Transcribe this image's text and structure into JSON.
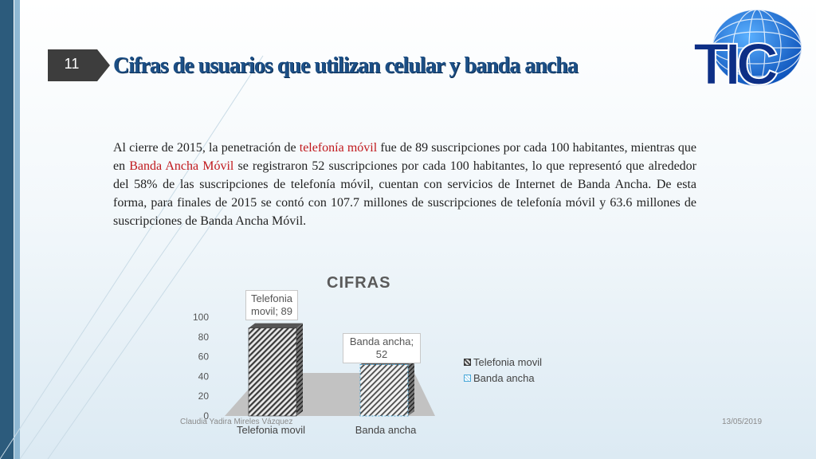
{
  "slide": {
    "number": "11",
    "title": "Cifras de usuarios que utilizan celular y banda ancha",
    "paragraph": {
      "p1": "Al cierre de 2015, la penetración de ",
      "h1": "telefonía móvil",
      "p2": " fue de 89 suscripciones por cada 100 habitantes, mientras que en ",
      "h2": "Banda Ancha Móvil",
      "p3": " se registraron 52 suscripciones por cada 100 habitantes, lo que representó que alrededor del 58% de las suscripciones de telefonía móvil, cuentan con servicios de Internet de Banda Ancha. De esta forma, para finales de 2015 se contó con 107.7 millones de suscripciones de telefonía móvil y 63.6 millones de suscripciones de Banda Ancha Móvil."
    },
    "logo_text": "TIC",
    "footer_author": "Claudia Yadira Mireles Vázquez",
    "footer_date": "13/05/2019",
    "colors": {
      "title": "#1c4f86",
      "highlight": "#c0181c",
      "accent_bar": "#2c5b7c"
    }
  },
  "chart_data": {
    "type": "bar",
    "title": "CIFRAS",
    "categories": [
      "Telefonia movil",
      "Banda ancha"
    ],
    "series": [
      {
        "name": "Telefonia movil",
        "values": [
          89,
          null
        ]
      },
      {
        "name": "Banda ancha",
        "values": [
          null,
          52
        ]
      }
    ],
    "data_labels": [
      "Telefonia movil; 89",
      "Banda ancha; 52"
    ],
    "yticks": [
      "0",
      "20",
      "40",
      "60",
      "80",
      "100"
    ],
    "ylim": [
      0,
      100
    ],
    "legend": [
      "Telefonia movil",
      "Banda ancha"
    ],
    "legend_position": "right",
    "style": "3d"
  }
}
